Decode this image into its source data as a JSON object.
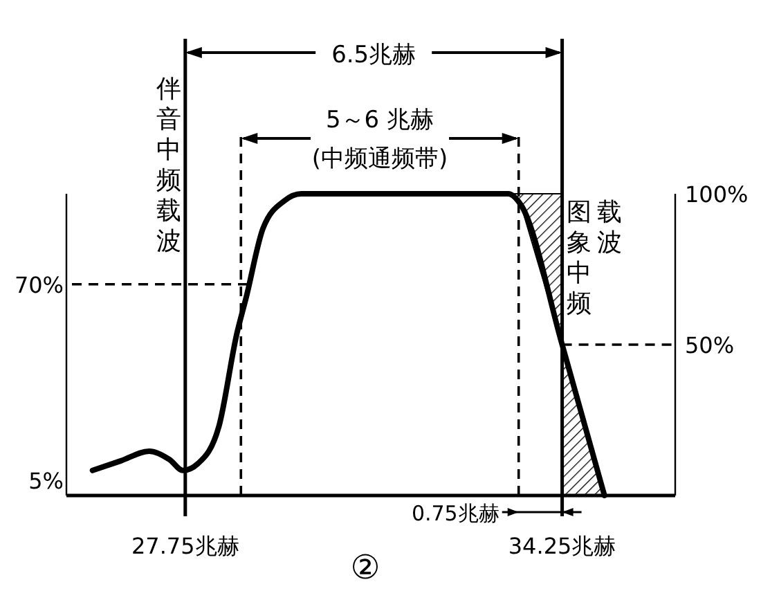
{
  "chart_data": {
    "type": "line",
    "xlim": [
      25.7,
      36.2
    ],
    "ylim": [
      0,
      100
    ],
    "xticks": [
      {
        "value": 27.75,
        "label": "27.75兆赫"
      },
      {
        "value": 34.25,
        "label": "34.25兆赫"
      }
    ],
    "yticks": [
      {
        "value": 5,
        "label": "5%"
      },
      {
        "value": 70,
        "label": "70%"
      }
    ],
    "y2lim": [
      0,
      100
    ],
    "y2ticks": [
      {
        "value": 50,
        "label": "50%"
      },
      {
        "value": 100,
        "label": "100%"
      }
    ],
    "line_style": "solid",
    "series": [
      {
        "color": "#000000",
        "x": [
          26.15,
          26.64,
          27.13,
          27.48,
          27.71,
          27.97,
          28.33,
          28.64,
          28.8,
          29.09,
          29.46,
          29.75,
          33.32,
          33.54,
          34.25,
          34.98
        ],
        "values": [
          8.3,
          11.5,
          14.7,
          11.9,
          8.3,
          10.6,
          22.9,
          53.7,
          65.6,
          88.5,
          97.7,
          100,
          100,
          96.3,
          50,
          0
        ]
      }
    ],
    "ref_lines": [
      {
        "axis": "x",
        "value": 27.75,
        "label": "伴音中频载波",
        "line_style": "solid"
      },
      {
        "axis": "x",
        "value": 34.25,
        "label": "图象中频载波",
        "line_style": "solid"
      },
      {
        "axis": "x",
        "value": 28.71,
        "line_style": "dashed"
      },
      {
        "axis": "x",
        "value": 33.5,
        "line_style": "dashed"
      },
      {
        "axis": "y",
        "value": 70,
        "line_style": "dashed"
      },
      {
        "axis": "y2",
        "value": 50,
        "line_style": "dashed"
      }
    ],
    "annotations": [
      "6.5兆赫",
      "5～6 兆赫",
      "(中频通频带)",
      "0.75兆赫",
      "②"
    ]
  }
}
